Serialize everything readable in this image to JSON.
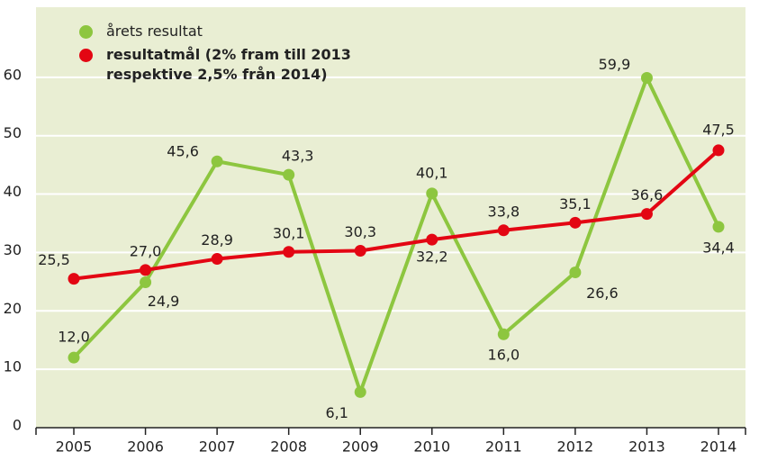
{
  "chart_data": {
    "type": "line",
    "categories": [
      "2005",
      "2006",
      "2007",
      "2008",
      "2009",
      "2010",
      "2011",
      "2012",
      "2013",
      "2014"
    ],
    "series": [
      {
        "name": "årets resultat",
        "color": "#8dc63f",
        "values": [
          12.0,
          24.9,
          45.6,
          43.3,
          6.1,
          40.1,
          16.0,
          26.6,
          59.9,
          34.4
        ],
        "value_labels": [
          "12,0",
          "24,9",
          "45,6",
          "43,3",
          "6,1",
          "40,1",
          "16,0",
          "26,6",
          "59,9",
          "34,4"
        ]
      },
      {
        "name": "resultatmål (2% fram till 2013 respektive 2,5% från 2014)",
        "color": "#e30613",
        "values": [
          25.5,
          27.0,
          28.9,
          30.1,
          30.3,
          32.2,
          33.8,
          35.1,
          36.6,
          47.5
        ],
        "value_labels": [
          "25,5",
          "27,0",
          "28,9",
          "30,1",
          "30,3",
          "32,2",
          "33,8",
          "35,1",
          "36,6",
          "47,5"
        ]
      }
    ],
    "ylim": [
      0,
      72
    ],
    "yticks": [
      0,
      10,
      20,
      30,
      40,
      50,
      60
    ],
    "grid": true,
    "legend": "top-left",
    "background": "#e9eed3"
  }
}
